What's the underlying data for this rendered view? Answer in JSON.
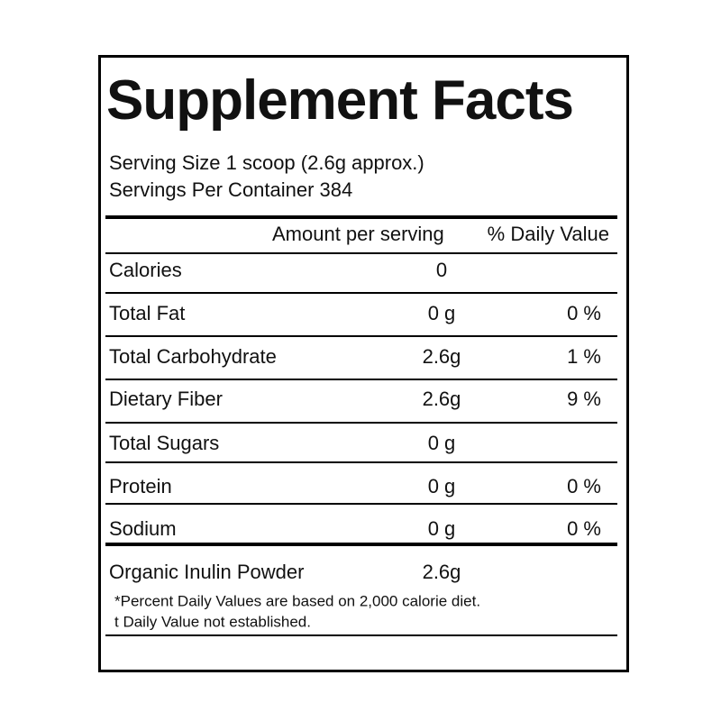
{
  "title": "Supplement Facts",
  "serving": [
    "Serving Size 1 scoop (2.6g approx.)",
    "Servings Per Container 384"
  ],
  "header": {
    "amount": "Amount per serving",
    "daily_value": "% Daily Value"
  },
  "rows": [
    {
      "nutrient": "Calories",
      "amount": "0"
    },
    {
      "nutrient": "Total Fat",
      "amount": "0 g",
      "daily_value": "0 %"
    },
    {
      "nutrient": "Total Carbohydrate",
      "amount": "2.6g",
      "daily_value": "1 %"
    },
    {
      "nutrient": "Dietary Fiber",
      "amount": "2.6g",
      "daily_value": "9 %"
    },
    {
      "nutrient": "Total Sugars",
      "amount": "0 g"
    },
    {
      "nutrient": "Protein",
      "amount": "0 g",
      "daily_value": "0 %"
    },
    {
      "nutrient": "Sodium",
      "amount": "0 g",
      "daily_value": "0 %"
    },
    {
      "nutrient": "Organic Inulin Powder",
      "amount": "2.6g"
    }
  ],
  "footnotes": [
    "*Percent Daily Values are based on 2,000 calorie diet.",
    "t Daily Value not established."
  ]
}
